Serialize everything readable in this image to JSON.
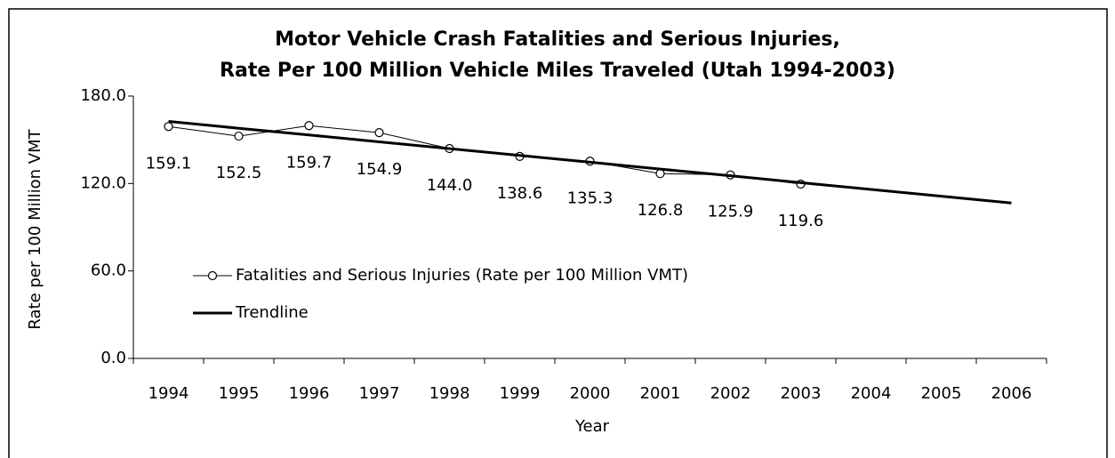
{
  "chart_data": {
    "type": "line",
    "title": [
      "Motor Vehicle Crash Fatalities and Serious Injuries,",
      "Rate Per 100 Million Vehicle Miles Traveled (Utah 1994-2003)"
    ],
    "x_label": "Year",
    "y_label": "Rate per 100 Million VMT",
    "categories": [
      "1994",
      "1995",
      "1996",
      "1997",
      "1998",
      "1999",
      "2000",
      "2001",
      "2002",
      "2003",
      "2004",
      "2005",
      "2006"
    ],
    "series": [
      {
        "name": "Fatalities and Serious Injuries (Rate per 100 Million VMT)",
        "color": "#000000",
        "markers": true,
        "values": [
          159.1,
          152.5,
          159.7,
          154.9,
          144.0,
          138.6,
          135.3,
          126.8,
          125.9,
          119.6,
          null,
          null,
          null
        ],
        "value_labels": [
          "159.1",
          "152.5",
          "159.7",
          "154.9",
          "144.0",
          "138.6",
          "135.3",
          "126.8",
          "125.9",
          "119.6",
          null,
          null,
          null
        ]
      },
      {
        "name": "Trendline",
        "color": "#000000",
        "markers": false,
        "values": [
          162.6,
          157.9,
          153.3,
          148.6,
          143.9,
          139.3,
          134.6,
          129.9,
          125.3,
          120.6,
          115.9,
          111.3,
          106.6
        ]
      }
    ],
    "ylim": [
      0,
      180
    ],
    "yticks": [
      {
        "value": 0,
        "label": "0.0"
      },
      {
        "value": 60,
        "label": "60.0"
      },
      {
        "value": 120,
        "label": "120.0"
      },
      {
        "value": 180,
        "label": "180.0"
      }
    ],
    "legend": "center left"
  }
}
